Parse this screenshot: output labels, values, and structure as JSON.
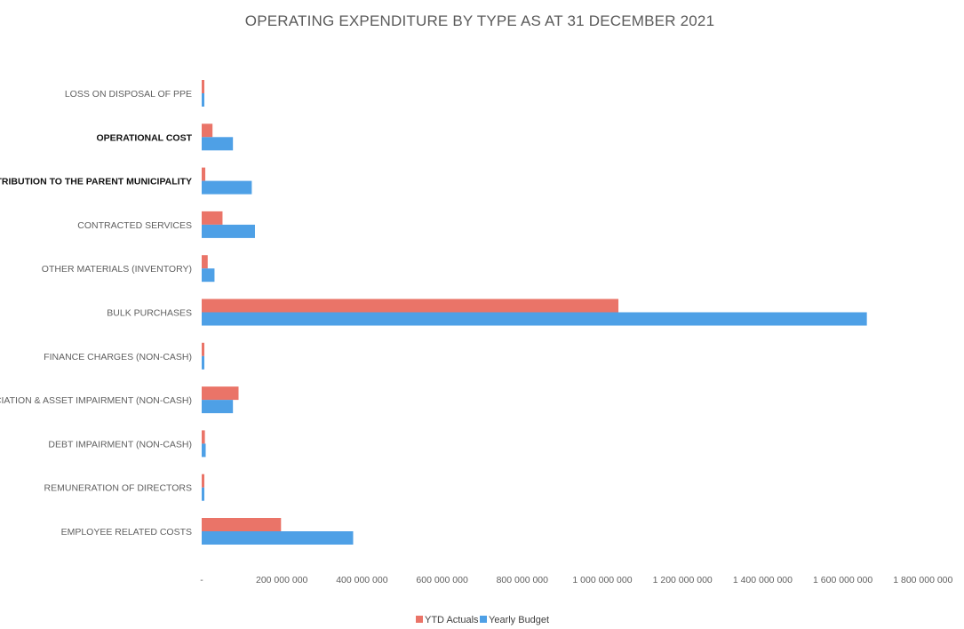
{
  "chart_data": {
    "type": "bar",
    "orientation": "horizontal",
    "title": "OPERATING EXPENDITURE BY TYPE AS AT 31 DECEMBER 2021",
    "xlabel": "",
    "ylabel": "",
    "xlim": [
      0,
      1800000000
    ],
    "grid": false,
    "legend_position": "bottom",
    "categories": [
      "LOSS ON DISPOSAL OF PPE",
      "OPERATIONAL COST",
      "CONTRIBUTION TO THE PARENT MUNICIPALITY",
      "CONTRACTED SERVICES",
      "OTHER MATERIALS (INVENTORY)",
      "BULK PURCHASES",
      "FINANCE CHARGES (NON-CASH)",
      "DEPRECIATION & ASSET IMPAIRMENT (NON-CASH)",
      "DEBT IMPAIRMENT (NON-CASH)",
      "REMUNERATION OF DIRECTORS",
      "EMPLOYEE RELATED COSTS"
    ],
    "emphasized_categories": [
      "OPERATIONAL COST",
      "CONTRIBUTION TO THE PARENT MUNICIPALITY"
    ],
    "series": [
      {
        "name": "YTD Actuals",
        "color": "#ea7468",
        "values": [
          2000000,
          27000000,
          9000000,
          52000000,
          15000000,
          1040000000,
          3000000,
          92000000,
          8000000,
          3000000,
          198000000
        ]
      },
      {
        "name": "Yearly Budget",
        "color": "#4ea0e6",
        "values": [
          2000000,
          78000000,
          125000000,
          133000000,
          32000000,
          1660000000,
          4000000,
          78000000,
          10000000,
          3000000,
          378000000
        ]
      }
    ],
    "x_ticks": [
      {
        "value": 0,
        "label": "-"
      },
      {
        "value": 200000000,
        "label": "200 000 000"
      },
      {
        "value": 400000000,
        "label": "400 000 000"
      },
      {
        "value": 600000000,
        "label": "600 000 000"
      },
      {
        "value": 800000000,
        "label": "800 000 000"
      },
      {
        "value": 1000000000,
        "label": "1 000 000 000"
      },
      {
        "value": 1200000000,
        "label": "1 200 000 000"
      },
      {
        "value": 1400000000,
        "label": "1 400 000 000"
      },
      {
        "value": 1600000000,
        "label": "1 600 000 000"
      },
      {
        "value": 1800000000,
        "label": "1 800 000 000"
      }
    ]
  }
}
